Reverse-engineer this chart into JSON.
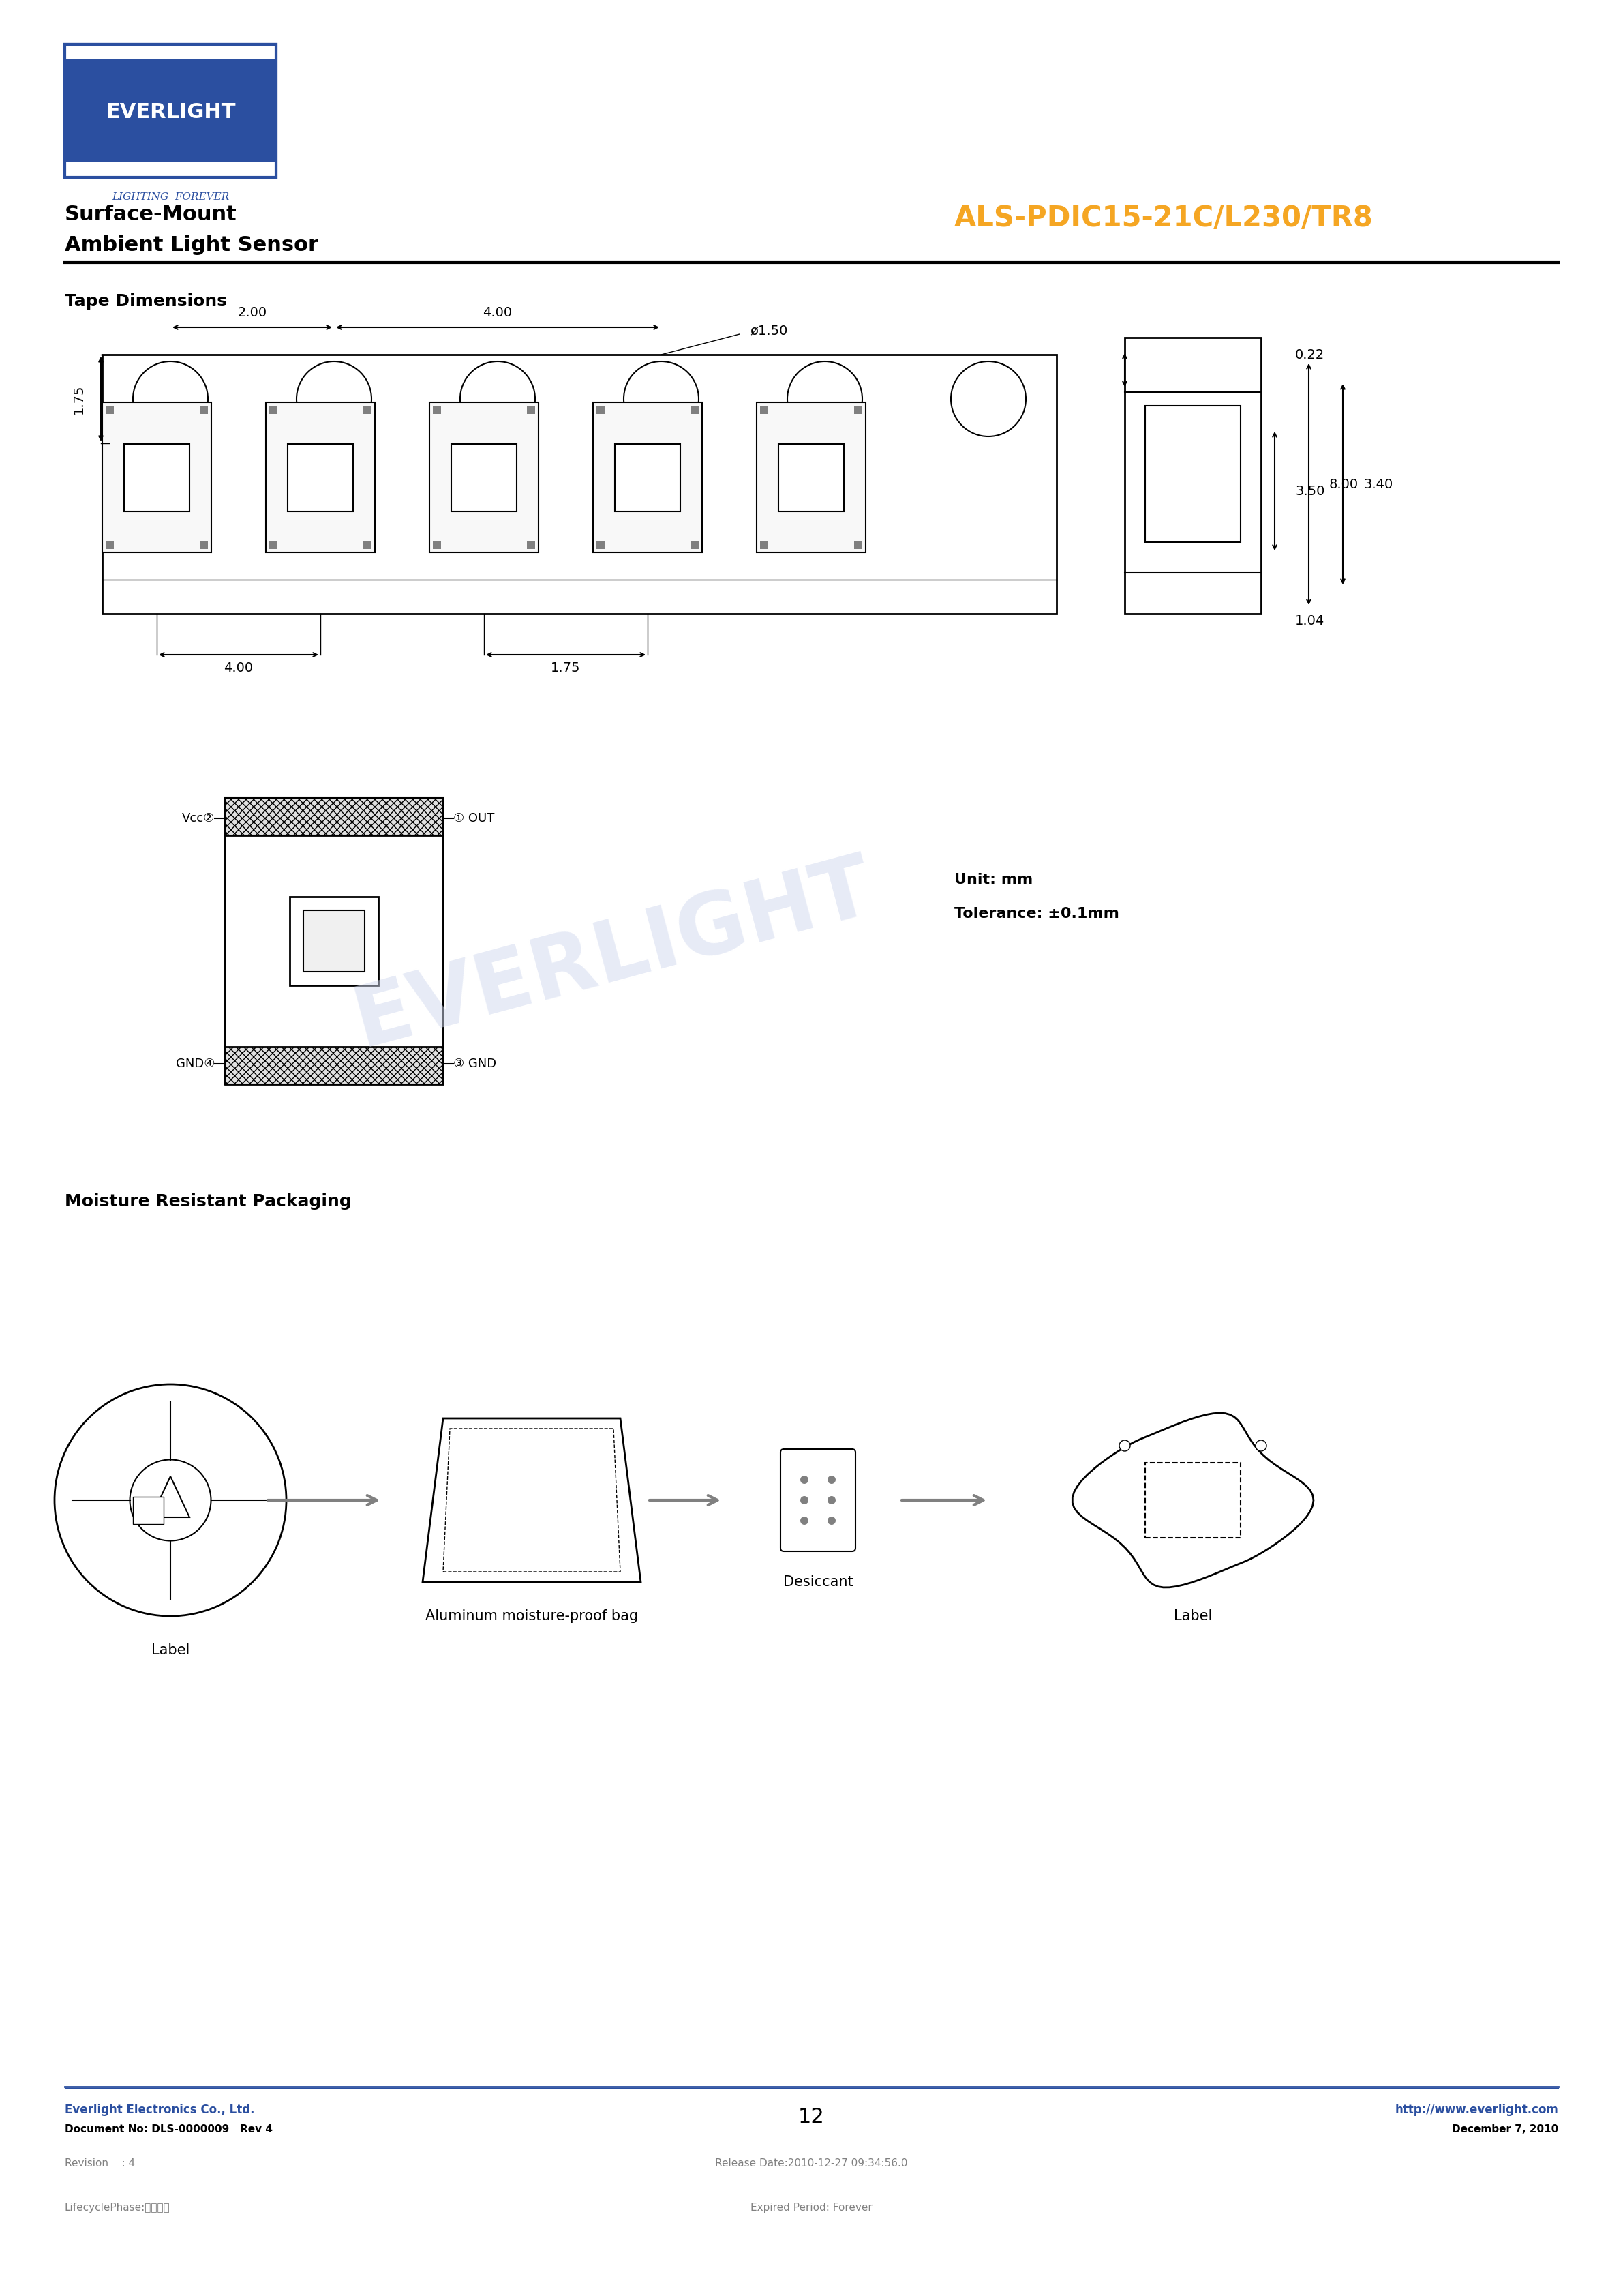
{
  "page_width": 23.81,
  "page_height": 33.67,
  "bg_color": "#ffffff",
  "everlight_blue": "#2b4fa0",
  "everlight_orange": "#f5a623",
  "header_line_color": "#000000",
  "footer_line_color": "#2b4fa0",
  "logo_text": "EVERLIGHT",
  "logo_subtitle": "LIGHTING  FOREVER",
  "product_line1": "Surface-Mount",
  "product_line2": "Ambient Light Sensor",
  "part_number": "ALS-PDIC15-21C/L230/TR8",
  "section_title1": "Tape Dimensions",
  "section_title2": "Moisture Resistant Packaging",
  "unit_text": "Unit: mm",
  "tolerance_text": "Tolerance: ±0.1mm",
  "tape_dims": {
    "d175": "1.75",
    "d200": "2.00",
    "d400_top": "4.00",
    "d150": "ø1.50",
    "d022": "0.22",
    "d350": "3.50",
    "d800": "8.00",
    "d340": "3.40",
    "d104": "1.04",
    "d400_bottom": "4.00",
    "d175_bottom": "1.75"
  },
  "pinout": {
    "pin1": "① OUT",
    "pin2": "Vcc②",
    "pin3": "③ GND",
    "pin4": "GND④"
  },
  "packaging_labels": [
    "Label",
    "Aluminum moisture-proof bag",
    "Desiccant",
    "Label"
  ],
  "footer_company": "Everlight Electronics Co., Ltd.",
  "footer_url": "http://www.everlight.com",
  "footer_doc": "Document No: DLS-0000009   Rev 4",
  "footer_date": "December 7, 2010",
  "footer_page": "12",
  "footer_revision": "Revision    : 4",
  "footer_release": "Release Date:2010-12-27 09:34:56.0",
  "footer_lifecycle": "LifecyclePhase:正式發行",
  "footer_expired": "Expired Period: Forever",
  "watermark_text": "EVERLIGHT"
}
